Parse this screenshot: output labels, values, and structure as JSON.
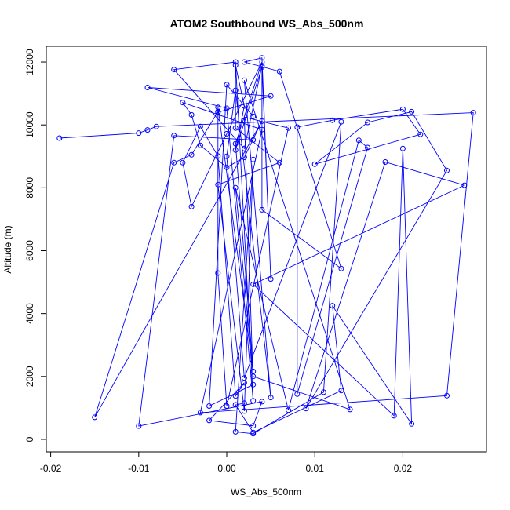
{
  "chart_data": {
    "type": "line",
    "title": "ATOM2 Southbound WS_Abs_500nm",
    "xlabel": "WS_Abs_500nm",
    "ylabel": "Altitude (m)",
    "xlim": [
      -0.0205,
      0.0295
    ],
    "ylim": [
      -400,
      12500
    ],
    "xticks": [
      -0.02,
      -0.01,
      0.0,
      0.01,
      0.02
    ],
    "xtick_labels": [
      "-0.02",
      "-0.01",
      "0.00",
      "0.01",
      "0.02"
    ],
    "yticks": [
      0,
      2000,
      4000,
      6000,
      8000,
      10000,
      12000
    ],
    "ytick_labels": [
      "0",
      "2000",
      "4000",
      "6000",
      "8000",
      "10000",
      "12000"
    ],
    "grid": false,
    "series": [
      {
        "color": "#0000ff",
        "marker": "open-circle",
        "x": [
          -0.019,
          -0.01,
          -0.009,
          -0.008,
          0.028,
          0.025,
          -0.003,
          0.004,
          -0.005,
          -0.004,
          -0.003,
          0.0,
          0.002,
          0.004,
          -0.015,
          -0.006,
          -0.004,
          -0.001,
          -0.001,
          0.003,
          0.001,
          0.004,
          0.0,
          -0.004,
          -0.005,
          -0.003,
          -0.001,
          0.001,
          0.002,
          -0.002,
          0.003,
          0.004,
          -0.01,
          -0.006,
          0.003,
          0.003,
          0.0,
          -0.002,
          0.003,
          0.002,
          0.007,
          0.0,
          -0.001,
          -0.001,
          0.005,
          -0.009,
          0.0,
          0.003,
          0.001,
          -0.006,
          0.002,
          0.004,
          0.005,
          0.004,
          0.002,
          0.006,
          0.013,
          0.004,
          0.004,
          0.001,
          0.002,
          0.001,
          0.001,
          0.006,
          -0.001,
          0.002,
          0.003,
          0.001,
          0.003,
          0.011,
          0.013,
          0.002,
          0.0,
          0.001,
          0.005,
          0.002,
          0.014,
          0.003,
          0.001,
          0.007,
          0.015,
          0.016,
          0.008,
          0.008,
          0.012,
          0.02,
          0.022,
          0.01,
          0.016,
          0.021,
          0.025,
          0.009,
          0.018,
          0.027,
          0.003,
          0.019,
          0.02,
          0.021,
          0.012,
          0.013,
          0.003,
          0.001,
          0.002
        ],
        "y": [
          9580,
          9740,
          9840,
          9950,
          10390,
          1390,
          850,
          9850,
          10710,
          10320,
          9350,
          8650,
          8970,
          10120,
          700,
          8800,
          9050,
          10420,
          10560,
          2160,
          9400,
          12000,
          9720,
          7400,
          8800,
          9950,
          9010,
          1380,
          1800,
          600,
          430,
          1200,
          420,
          9660,
          9520,
          10270,
          11280,
          1060,
          1740,
          10250,
          9900,
          1060,
          5290,
          10400,
          10920,
          11190,
          10530,
          1230,
          12000,
          11760,
          9250,
          11880,
          5100,
          12130,
          12000,
          11700,
          5430,
          7300,
          11840,
          9200,
          10600,
          11900,
          9900,
          8800,
          8100,
          900,
          8900,
          240,
          180,
          1500,
          10100,
          1950,
          9000,
          11100,
          1330,
          11420,
          950,
          2000,
          8000,
          930,
          9510,
          9280,
          1440,
          9930,
          10150,
          10500,
          9700,
          8750,
          10080,
          10420,
          8550,
          980,
          8820,
          8080,
          4930,
          750,
          9250,
          490,
          4250,
          1550,
          220,
          1100,
          1150
        ]
      }
    ]
  }
}
